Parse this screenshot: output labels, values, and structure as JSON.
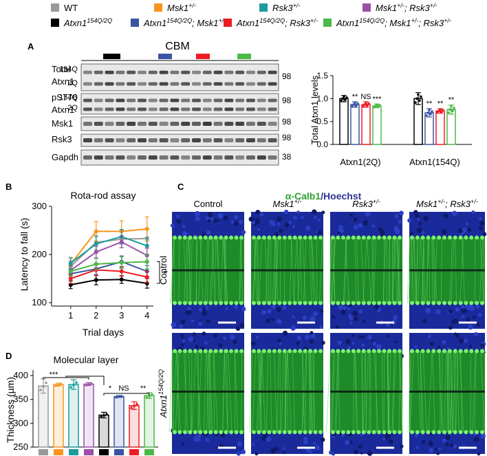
{
  "legend": {
    "items": [
      {
        "name": [
          "WT"
        ],
        "color": "#999999"
      },
      {
        "name": [
          "Msk1",
          "+/-"
        ],
        "color": "#f7941d"
      },
      {
        "name": [
          "Rsk3",
          "+/-"
        ],
        "color": "#1a9c9c"
      },
      {
        "name": [
          "Msk1",
          "+/-",
          "; Rsk3",
          "+/-"
        ],
        "color": "#9b4fa8"
      },
      {
        "name": [
          "Atxn1",
          "154Q/2Q"
        ],
        "color": "#000000"
      },
      {
        "name": [
          "Atxn1",
          "154Q/2Q",
          "; Msk1",
          "+/-"
        ],
        "color": "#3a53a4"
      },
      {
        "name": [
          "Atxn1",
          "154Q/2Q",
          "; Rsk3",
          "+/-"
        ],
        "color": "#ed1c24"
      },
      {
        "name": [
          "Atxn1",
          "154Q/2Q",
          "; Msk1",
          "+/-",
          "; Rsk3",
          "+/-"
        ],
        "color": "#4cb848"
      }
    ]
  },
  "panels": [
    "A",
    "B",
    "C",
    "D"
  ],
  "blot": {
    "title": "CBM",
    "row_labels": [
      "Total",
      "Atxn1",
      "154Q",
      "2Q",
      "pS776",
      "Atxn1",
      "154Q",
      "2Q",
      "Msk1",
      "Rsk3",
      "Gapdh"
    ],
    "markers": [
      98,
      98,
      98,
      98,
      38
    ]
  },
  "images": {
    "title_parts": [
      "α-Calb1",
      "/Hoechst"
    ],
    "columns": [
      [
        "Control"
      ],
      [
        "Msk1",
        "+/-"
      ],
      [
        "Rsk3",
        "+/-"
      ],
      [
        "Msk1",
        "+/-",
        "; Rsk3",
        "+/-"
      ]
    ],
    "rows": [
      [
        "Control"
      ],
      [
        "Atxn1",
        "154Q/2Q"
      ]
    ]
  },
  "chart_data": [
    {
      "type": "bar",
      "ylabel": "Total Atxn1 levels",
      "categories": [
        "Atxn1(2Q)",
        "Atxn1(154Q)"
      ],
      "ylim": [
        0,
        1.5
      ],
      "yticks": [
        {
          "value": 0,
          "label": "0.0"
        },
        {
          "value": 0.5,
          "label": "0.5"
        },
        {
          "value": 1,
          "label": "1.0"
        },
        {
          "value": 1.5,
          "label": "1.5"
        }
      ],
      "series": [
        {
          "color": "#000000",
          "values": [
            1.0,
            1.0
          ],
          "errors": [
            0.07,
            0.13
          ]
        },
        {
          "color": "#3a53a4",
          "values": [
            0.87,
            0.69
          ],
          "errors": [
            0.06,
            0.09
          ],
          "annotations": [
            "**",
            "**"
          ]
        },
        {
          "color": "#ed1c24",
          "values": [
            0.87,
            0.73
          ],
          "errors": [
            0.06,
            0.05
          ],
          "annotations": [
            "NS",
            "**"
          ]
        },
        {
          "color": "#4cb848",
          "values": [
            0.84,
            0.76
          ],
          "errors": [
            0.04,
            0.1
          ],
          "annotations": [
            "***",
            "**"
          ]
        }
      ]
    },
    {
      "type": "line",
      "title": "Rota-rod assay",
      "xlabel": "Trial days",
      "ylabel": "Latency to fall (s)",
      "x": [
        1,
        2,
        3,
        4
      ],
      "xlim": [
        0.25,
        4.25
      ],
      "xticks": [
        1,
        2,
        3,
        4
      ],
      "ylim": [
        100,
        300
      ],
      "yticks": [
        100,
        200,
        300
      ],
      "annotation": "*",
      "series": [
        {
          "color": "#999999",
          "values": [
            175,
            225,
            232,
            233
          ],
          "errors": [
            12,
            15,
            18,
            20
          ]
        },
        {
          "color": "#f7941d",
          "values": [
            180,
            248,
            248,
            253
          ],
          "errors": [
            12,
            20,
            22,
            25
          ]
        },
        {
          "color": "#1a9c9c",
          "values": [
            182,
            222,
            237,
            218
          ],
          "errors": [
            12,
            15,
            15,
            18
          ]
        },
        {
          "color": "#9b4fa8",
          "values": [
            167,
            205,
            226,
            198
          ],
          "errors": [
            10,
            12,
            12,
            15
          ]
        },
        {
          "color": "#000000",
          "values": [
            137,
            147,
            148,
            140
          ],
          "errors": [
            8,
            10,
            8,
            10
          ]
        },
        {
          "color": "#3a53a4",
          "values": [
            160,
            170,
            185,
            165
          ],
          "errors": [
            10,
            12,
            12,
            12
          ]
        },
        {
          "color": "#ed1c24",
          "values": [
            150,
            168,
            165,
            153
          ],
          "errors": [
            10,
            12,
            10,
            12
          ]
        },
        {
          "color": "#4cb848",
          "values": [
            165,
            180,
            183,
            185
          ],
          "errors": [
            10,
            12,
            12,
            15
          ]
        }
      ]
    },
    {
      "type": "bar",
      "title": "Molecular layer",
      "ylabel": "Thickness (µm)",
      "categories": [
        null,
        null,
        null,
        null,
        null,
        null,
        null,
        null
      ],
      "ylim": [
        250,
        400
      ],
      "yticks": [
        250,
        300,
        350,
        400
      ],
      "annotations": [
        "***",
        "*",
        "NS",
        "**"
      ],
      "colors": [
        "#999999",
        "#f7941d",
        "#1a9c9c",
        "#9b4fa8",
        "#000000",
        "#3a53a4",
        "#ed1c24",
        "#4cb848"
      ],
      "values": [
        378,
        381,
        381,
        382,
        317,
        356,
        337,
        358
      ],
      "errors": [
        15,
        3,
        10,
        3,
        6,
        2,
        8,
        6
      ]
    }
  ]
}
